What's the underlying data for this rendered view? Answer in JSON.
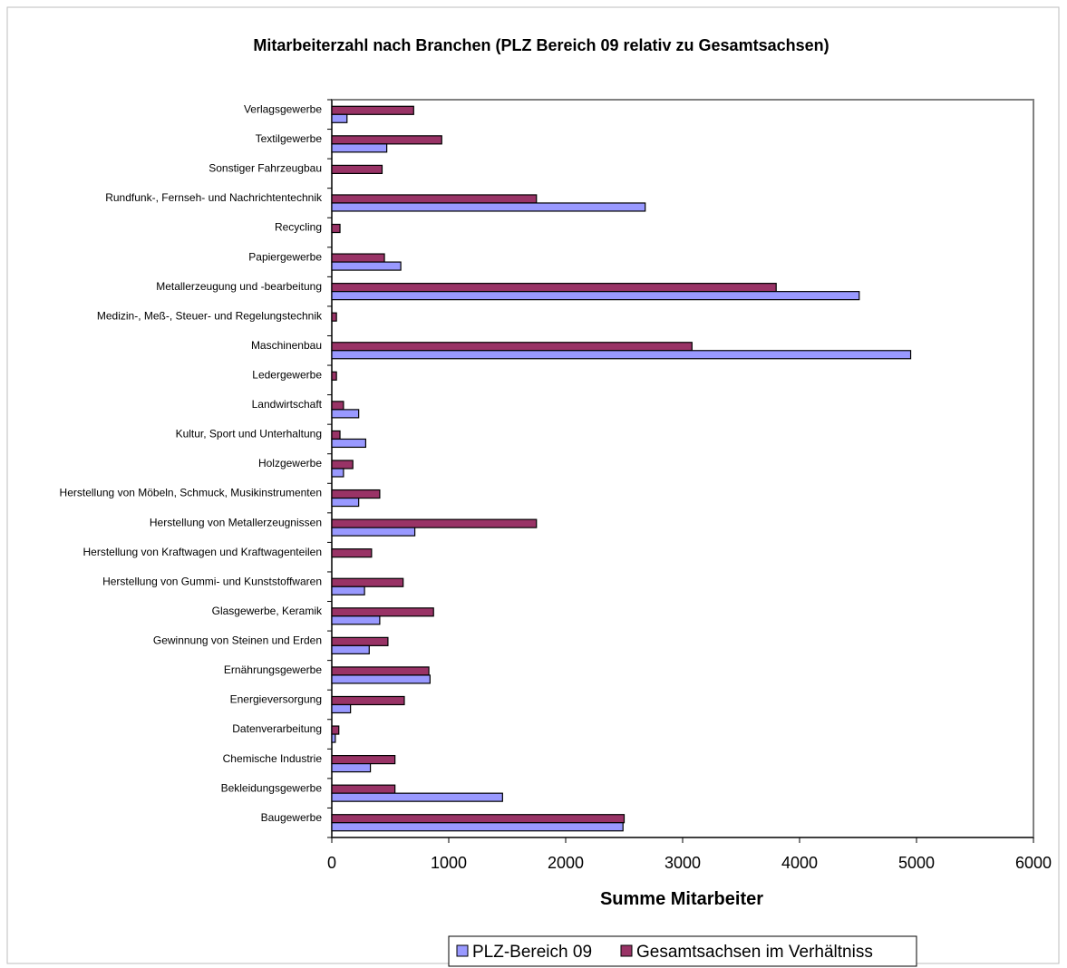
{
  "chart_data": {
    "type": "bar",
    "orientation": "horizontal",
    "title": "Mitarbeiterzahl nach Branchen (PLZ Bereich 09 relativ zu Gesamtsachsen)",
    "xlabel": "Summe Mitarbeiter",
    "ylabel": "",
    "xlim": [
      0,
      6000
    ],
    "xticks": [
      0,
      1000,
      2000,
      3000,
      4000,
      5000,
      6000
    ],
    "xtick_labels": [
      "0",
      "1000",
      "2000",
      "3000",
      "4000",
      "5000",
      "6000"
    ],
    "grid": false,
    "legend_position": "bottom",
    "categories": [
      "Verlagsgewerbe",
      "Textilgewerbe",
      "Sonstiger Fahrzeugbau",
      "Rundfunk-, Fernseh- und Nachrichtentechnik",
      "Recycling",
      "Papiergewerbe",
      "Metallerzeugung und -bearbeitung",
      "Medizin-, Meß-, Steuer- und Regelungstechnik",
      "Maschinenbau",
      "Ledergewerbe",
      "Landwirtschaft",
      "Kultur, Sport und Unterhaltung",
      "Holzgewerbe",
      "Herstellung von Möbeln, Schmuck, Musikinstrumenten",
      "Herstellung von Metallerzeugnissen",
      "Herstellung von Kraftwagen und Kraftwagenteilen",
      "Herstellung von Gummi- und Kunststoffwaren",
      "Glasgewerbe, Keramik",
      "Gewinnung von Steinen und Erden",
      "Ernährungsgewerbe",
      "Energieversorgung",
      "Datenverarbeitung",
      "Chemische Industrie",
      "Bekleidungsgewerbe",
      "Baugewerbe"
    ],
    "series": [
      {
        "name": "PLZ-Bereich 09",
        "color": "#9999ff",
        "values": [
          130,
          470,
          0,
          2680,
          0,
          590,
          4510,
          0,
          4950,
          0,
          230,
          290,
          100,
          230,
          710,
          0,
          280,
          410,
          320,
          840,
          160,
          30,
          330,
          1460,
          2490
        ]
      },
      {
        "name": "Gesamtsachsen im Verhältniss",
        "color": "#993366",
        "values": [
          700,
          940,
          430,
          1750,
          70,
          450,
          3800,
          40,
          3080,
          40,
          100,
          70,
          180,
          410,
          1750,
          340,
          610,
          870,
          480,
          830,
          620,
          60,
          540,
          540,
          2500
        ]
      }
    ]
  }
}
